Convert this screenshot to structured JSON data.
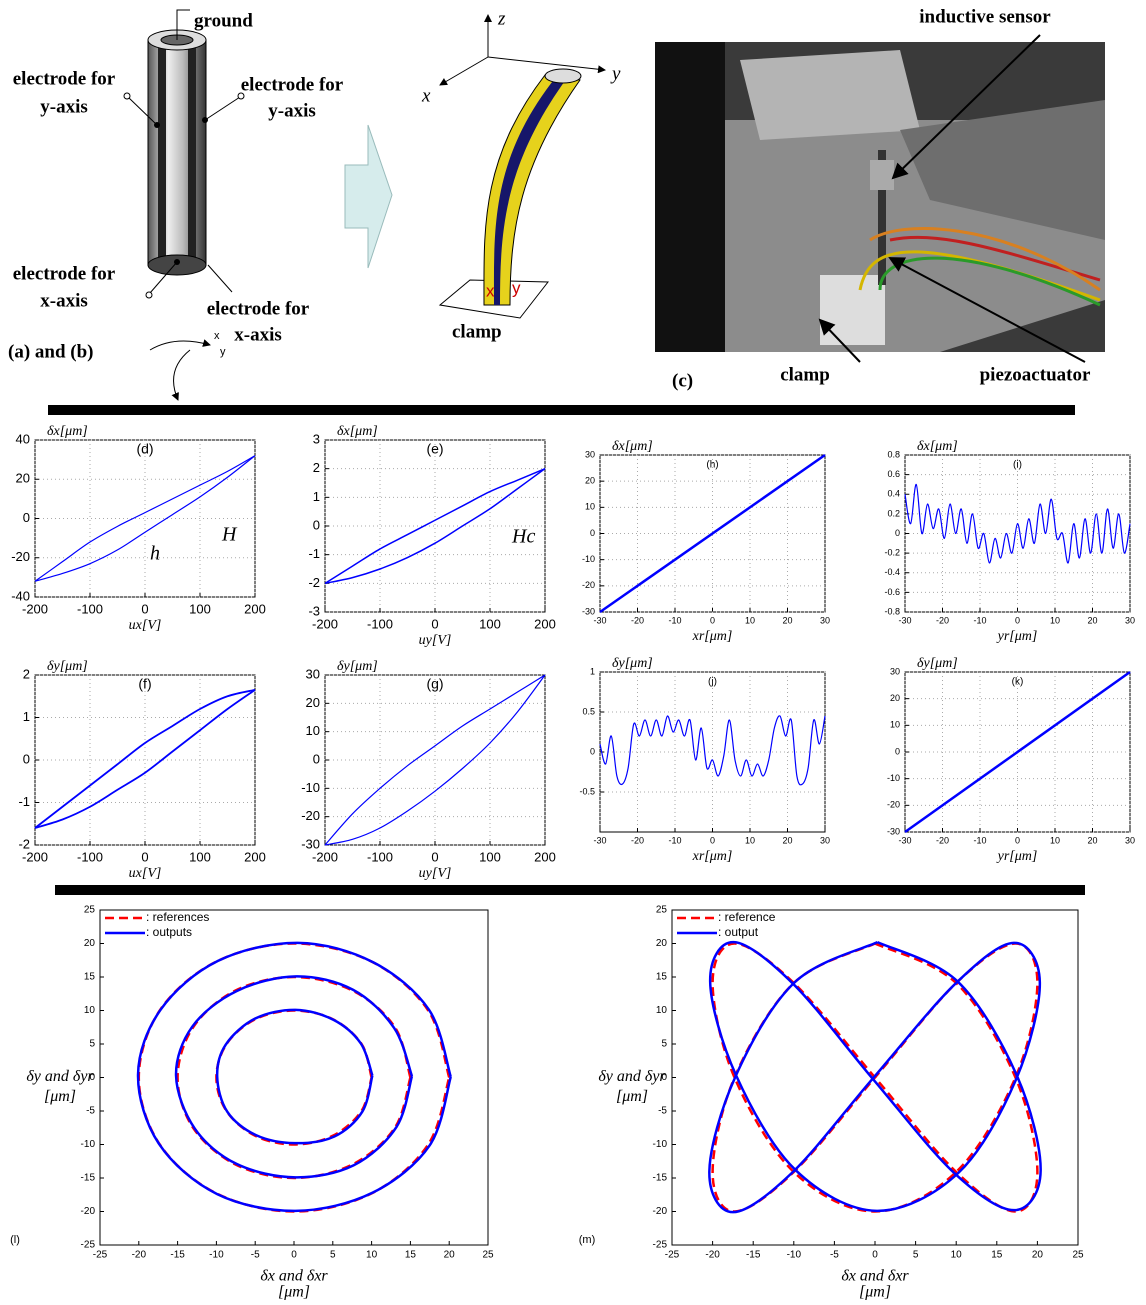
{
  "figure": {
    "panel_ab": "(a) and (b)",
    "ground": "ground",
    "electrode_y_left": [
      "electrode for",
      "y-axis"
    ],
    "electrode_y_right": [
      "electrode for",
      "y-axis"
    ],
    "electrode_x_left": [
      "electrode for",
      "x-axis"
    ],
    "electrode_x_right": [
      "electrode for",
      "x-axis"
    ],
    "axes_a": [
      "x",
      "y"
    ],
    "axes_b": [
      "x",
      "y",
      "z"
    ],
    "marks_b": [
      "x",
      "y"
    ],
    "clamp_b": "clamp",
    "panel_c": "(c)",
    "inductive_sensor": "inductive sensor",
    "clamp_c": "clamp",
    "piezoactuator": "piezoactuator"
  },
  "chart_data": [
    {
      "type": "line",
      "label": "(d)",
      "y_label": "δx[μm]",
      "x_label": "ux[V]",
      "annotations": [
        "H",
        "h"
      ],
      "xlim": [
        -200,
        200
      ],
      "ylim": [
        -40,
        40
      ],
      "xticks": [
        -200,
        -100,
        0,
        100,
        200
      ],
      "yticks": [
        -40,
        -20,
        0,
        20,
        40
      ],
      "grid": true,
      "x": [
        -200,
        -150,
        -100,
        -50,
        0,
        50,
        100,
        150,
        200
      ],
      "series": [
        {
          "color": "#0000ff",
          "values": [
            -32,
            -28,
            -23,
            -16,
            -7,
            2,
            11,
            21,
            32
          ]
        },
        {
          "color": "#0000ff",
          "values": [
            -32,
            -22,
            -12,
            -4,
            3,
            10,
            17,
            24,
            32
          ]
        }
      ]
    },
    {
      "type": "line",
      "label": "(e)",
      "y_label": "δx[μm]",
      "x_label": "uy[V]",
      "annotations": [
        "Hc"
      ],
      "xlim": [
        -200,
        200
      ],
      "ylim": [
        -3,
        3
      ],
      "xticks": [
        -200,
        -100,
        0,
        100,
        200
      ],
      "yticks": [
        -3,
        -2,
        -1,
        0,
        1,
        2,
        3
      ],
      "grid": true,
      "x": [
        -200,
        -150,
        -100,
        -50,
        0,
        50,
        100,
        150,
        200
      ],
      "series": [
        {
          "color": "#0000ff",
          "values": [
            -2,
            -1.8,
            -1.5,
            -1.1,
            -0.6,
            0,
            0.6,
            1.3,
            2
          ]
        },
        {
          "color": "#0000ff",
          "values": [
            -2,
            -1.4,
            -0.8,
            -0.3,
            0.2,
            0.7,
            1.2,
            1.6,
            2
          ]
        }
      ]
    },
    {
      "type": "line",
      "label": "(h)",
      "y_label": "δx[μm]",
      "x_label": "xr[μm]",
      "xlim": [
        -30,
        30
      ],
      "ylim": [
        -30,
        30
      ],
      "xticks": [
        -30,
        -20,
        -10,
        0,
        10,
        20,
        30
      ],
      "yticks": [
        -30,
        -20,
        -10,
        0,
        10,
        20,
        30
      ],
      "grid": true,
      "x": [
        -30,
        30
      ],
      "series": [
        {
          "color": "#0000ff",
          "values": [
            -30,
            30
          ]
        }
      ]
    },
    {
      "type": "line",
      "label": "(i)",
      "y_label": "δx[μm]",
      "x_label": "yr[μm]",
      "xlim": [
        -30,
        30
      ],
      "ylim": [
        -0.8,
        0.8
      ],
      "xticks": [
        -30,
        -20,
        -10,
        0,
        10,
        20,
        30
      ],
      "yticks": [
        -0.8,
        -0.6,
        -0.4,
        -0.2,
        0,
        0.2,
        0.4,
        0.6,
        0.8
      ],
      "grid": true,
      "x": [
        -30,
        -28.5,
        -27,
        -25.5,
        -24,
        -22.5,
        -21,
        -19.5,
        -18,
        -16.5,
        -15,
        -13.5,
        -12,
        -10.5,
        -9,
        -7.5,
        -6,
        -4.5,
        -3,
        -1.5,
        0,
        1.5,
        3,
        4.5,
        6,
        7.5,
        9,
        10.5,
        12,
        13.5,
        15,
        16.5,
        18,
        19.5,
        21,
        22.5,
        24,
        25.5,
        27,
        28.5,
        30
      ],
      "series": [
        {
          "color": "#0000ff",
          "values": [
            0.4,
            0.1,
            0.5,
            0.0,
            0.3,
            0.05,
            0.25,
            -0.05,
            0.3,
            0.0,
            0.25,
            -0.1,
            0.2,
            -0.15,
            0.0,
            -0.3,
            -0.05,
            -0.25,
            0.0,
            -0.2,
            0.1,
            -0.15,
            0.15,
            -0.1,
            0.3,
            0.0,
            0.35,
            -0.05,
            0.0,
            -0.3,
            0.1,
            -0.25,
            0.15,
            -0.2,
            0.2,
            -0.2,
            0.25,
            -0.15,
            0.2,
            -0.2,
            0.1
          ]
        }
      ]
    },
    {
      "type": "line",
      "label": "(f)",
      "y_label": "δy[μm]",
      "x_label": "ux[V]",
      "xlim": [
        -200,
        200
      ],
      "ylim": [
        -2,
        2
      ],
      "xticks": [
        -200,
        -100,
        0,
        100,
        200
      ],
      "yticks": [
        -2,
        -1,
        0,
        1,
        2
      ],
      "grid": true,
      "x": [
        -200,
        -150,
        -100,
        -50,
        0,
        50,
        100,
        150,
        200
      ],
      "series": [
        {
          "color": "#0000ff",
          "values": [
            -1.6,
            -1.4,
            -1.1,
            -0.7,
            -0.3,
            0.2,
            0.7,
            1.2,
            1.65
          ]
        },
        {
          "color": "#0000ff",
          "values": [
            -1.6,
            -1.1,
            -0.6,
            -0.1,
            0.4,
            0.8,
            1.2,
            1.5,
            1.65
          ]
        }
      ]
    },
    {
      "type": "line",
      "label": "(g)",
      "y_label": "δy[μm]",
      "x_label": "uy[V]",
      "xlim": [
        -200,
        200
      ],
      "ylim": [
        -30,
        30
      ],
      "xticks": [
        -200,
        -100,
        0,
        100,
        200
      ],
      "yticks": [
        -30,
        -20,
        -10,
        0,
        10,
        20,
        30
      ],
      "grid": true,
      "x": [
        -200,
        -150,
        -100,
        -50,
        0,
        50,
        100,
        150,
        200
      ],
      "series": [
        {
          "color": "#0000ff",
          "values": [
            -30,
            -28,
            -24,
            -18,
            -11,
            -3,
            6,
            17,
            30
          ]
        },
        {
          "color": "#0000ff",
          "values": [
            -30,
            -19,
            -10,
            -2,
            5,
            12,
            18,
            24,
            30
          ]
        }
      ]
    },
    {
      "type": "line",
      "label": "(j)",
      "y_label": "δy[μm]",
      "x_label": "xr[μm]",
      "xlim": [
        -30,
        30
      ],
      "ylim": [
        -1,
        1
      ],
      "xticks": [
        -30,
        -20,
        -10,
        0,
        10,
        20,
        30
      ],
      "yticks": [
        -0.5,
        0,
        0.5,
        1
      ],
      "grid": true,
      "x": [
        -30,
        -28.5,
        -27,
        -25.5,
        -24,
        -22.5,
        -21,
        -19.5,
        -18,
        -16.5,
        -15,
        -13.5,
        -12,
        -10.5,
        -9,
        -7.5,
        -6,
        -4.5,
        -3,
        -1.5,
        0,
        1.5,
        3,
        4.5,
        6,
        7.5,
        9,
        10.5,
        12,
        13.5,
        15,
        16.5,
        18,
        19.5,
        21,
        22.5,
        24,
        25.5,
        27,
        28.5,
        30
      ],
      "series": [
        {
          "color": "#0000ff",
          "values": [
            0.1,
            -0.15,
            0.2,
            -0.3,
            -0.4,
            -0.2,
            0.35,
            0.2,
            0.4,
            0.2,
            0.4,
            0.2,
            0.45,
            0.25,
            0.4,
            0.2,
            0.4,
            -0.1,
            0.3,
            -0.2,
            -0.1,
            -0.3,
            -0.05,
            0.4,
            -0.1,
            -0.3,
            -0.1,
            -0.3,
            -0.15,
            -0.3,
            -0.1,
            0.3,
            0.45,
            0.2,
            0.4,
            -0.3,
            -0.4,
            -0.2,
            0.4,
            0.1,
            0.45
          ]
        }
      ]
    },
    {
      "type": "line",
      "label": "(k)",
      "y_label": "δy[μm]",
      "x_label": "yr[μm]",
      "xlim": [
        -30,
        30
      ],
      "ylim": [
        -30,
        30
      ],
      "xticks": [
        -30,
        -20,
        -10,
        0,
        10,
        20,
        30
      ],
      "yticks": [
        -30,
        -20,
        -10,
        0,
        10,
        20,
        30
      ],
      "grid": true,
      "x": [
        -30,
        30
      ],
      "series": [
        {
          "color": "#0000ff",
          "values": [
            -30,
            30
          ]
        }
      ]
    },
    {
      "type": "line",
      "label": "(l)",
      "y_label": [
        "δy and δyr",
        "[μm]"
      ],
      "x_label": [
        "δx and δxr",
        "[μm]"
      ],
      "legend": "upper left",
      "xlim": [
        -25,
        25
      ],
      "ylim": [
        -25,
        25
      ],
      "xticks": [
        -25,
        -20,
        -15,
        -10,
        -5,
        0,
        5,
        10,
        15,
        20,
        25
      ],
      "yticks": [
        -25,
        -20,
        -15,
        -10,
        -5,
        0,
        5,
        10,
        15,
        20,
        25
      ],
      "grid": false,
      "series": [
        {
          "name": ": references",
          "color": "#ff0000",
          "line_style": "dashed",
          "x": [
            10,
            8.7,
            5,
            0,
            -5,
            -8.7,
            -10,
            -8.7,
            -5,
            0,
            5,
            8.7,
            10,
            null,
            15,
            13,
            7.5,
            0,
            -7.5,
            -13,
            -15,
            -13,
            -7.5,
            0,
            7.5,
            13,
            15,
            null,
            20,
            17.3,
            10,
            0,
            -10,
            -17.3,
            -20,
            -17.3,
            -10,
            0,
            10,
            17.3,
            20
          ],
          "values": [
            0,
            5,
            8.7,
            10,
            8.7,
            5,
            0,
            -5,
            -8.7,
            -10,
            -8.7,
            -5,
            0,
            null,
            0,
            7.5,
            13,
            15,
            13,
            7.5,
            0,
            -7.5,
            -13,
            -15,
            -13,
            -7.5,
            0,
            null,
            0,
            10,
            17.3,
            20,
            17.3,
            10,
            0,
            -10,
            -17.3,
            -20,
            -17.3,
            -10,
            0
          ]
        },
        {
          "name": ": outputs",
          "color": "#0000ff",
          "line_style": "solid",
          "x": [
            10.1,
            8.6,
            5.1,
            0.2,
            -5,
            -8.8,
            -9.9,
            -8.6,
            -4.9,
            0.1,
            5.2,
            8.8,
            10.1,
            null,
            15.2,
            12.9,
            7.6,
            0.3,
            -7.4,
            -13.1,
            -15.2,
            -12.8,
            -7.4,
            0.2,
            7.7,
            13.2,
            15.2,
            null,
            20.2,
            17.4,
            10.2,
            0.5,
            -9.8,
            -17.2,
            -20.1,
            -17.4,
            -9.9,
            0.2,
            10.1,
            17.5,
            20.2
          ],
          "values": [
            0.3,
            5.1,
            8.6,
            10.1,
            8.8,
            4.9,
            0.2,
            -5.1,
            -8.6,
            -9.8,
            -8.8,
            -5.1,
            0.3,
            null,
            0.2,
            7.4,
            13.1,
            15.1,
            12.9,
            7.6,
            0.3,
            -7.6,
            -12.9,
            -14.9,
            -13.1,
            -7.4,
            0.2,
            null,
            0.1,
            10.1,
            17.2,
            20.1,
            17.4,
            10.1,
            0.4,
            -9.9,
            -17.4,
            -19.9,
            -17.2,
            -10.1,
            0.1
          ]
        }
      ]
    },
    {
      "type": "line",
      "label": "(m)",
      "y_label": [
        "δy and δyr",
        "[μm]"
      ],
      "x_label": [
        "δx and δxr",
        "[μm]"
      ],
      "legend": "upper left",
      "xlim": [
        -25,
        25
      ],
      "ylim": [
        -25,
        25
      ],
      "xticks": [
        -25,
        -20,
        -15,
        -10,
        -5,
        0,
        5,
        10,
        15,
        20,
        25
      ],
      "yticks": [
        -25,
        -20,
        -15,
        -10,
        -5,
        0,
        5,
        10,
        15,
        20,
        25
      ],
      "grid": false,
      "series": [
        {
          "name": ": reference",
          "color": "#ff0000",
          "line_style": "dashed",
          "x": [
            0,
            10,
            17.3,
            20,
            17.3,
            10,
            0,
            -10,
            -17.3,
            -20,
            -17.3,
            -10,
            0,
            10,
            17.3,
            20,
            17.3,
            10,
            0,
            -10,
            -17.3,
            -20,
            -17.3,
            -10,
            0
          ],
          "values": [
            20,
            14.1,
            0,
            -14.1,
            -20,
            -14.1,
            0,
            14.1,
            20,
            14.1,
            0,
            -14.1,
            -20,
            -14.1,
            0,
            14.1,
            20,
            14.1,
            0,
            -14.1,
            -20,
            -14.1,
            0,
            14.1,
            20
          ]
        },
        {
          "name": ": output",
          "color": "#0000ff",
          "line_style": "solid",
          "x": [
            0.3,
            10.2,
            17.5,
            20.4,
            17.2,
            9.8,
            -0.2,
            -10.1,
            -17.4,
            -20.3,
            -17.1,
            -9.8,
            0.2,
            10.3,
            17.4,
            20.3,
            17.1,
            9.9,
            -0.3,
            -10.2,
            -17.5,
            -20.4,
            -17.2,
            -9.9,
            0.3
          ],
          "values": [
            20.2,
            14.3,
            0.2,
            -13.9,
            -19.8,
            -14.3,
            -0.3,
            14.0,
            20.2,
            14.3,
            0.3,
            -13.8,
            -19.9,
            -14.2,
            -0.2,
            14.2,
            20.1,
            14.0,
            -0.2,
            -14.2,
            -20.1,
            -14.0,
            0.1,
            14.2,
            20.2
          ]
        }
      ]
    }
  ]
}
